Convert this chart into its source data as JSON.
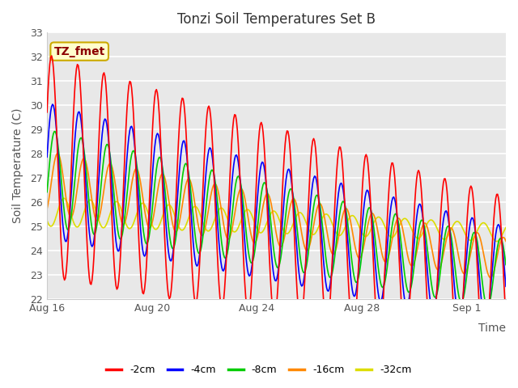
{
  "title": "Tonzi Soil Temperatures Set B",
  "ylabel": "Soil Temperature (C)",
  "ylim": [
    22.0,
    33.0
  ],
  "yticks": [
    22.0,
    23.0,
    24.0,
    25.0,
    26.0,
    27.0,
    28.0,
    29.0,
    30.0,
    31.0,
    32.0,
    33.0
  ],
  "plot_bg": "#e8e8e8",
  "series_colors": [
    "#ff0000",
    "#0000ff",
    "#00cc00",
    "#ff8800",
    "#dddd00"
  ],
  "series_labels": [
    "-2cm",
    "-4cm",
    "-8cm",
    "-16cm",
    "-32cm"
  ],
  "annotation_text": "TZ_fmet",
  "annotation_bg": "#ffffcc",
  "annotation_border": "#ccaa00",
  "x_tick_labels": [
    "Aug 16",
    "Aug 20",
    "Aug 24",
    "Aug 28",
    "Sep 1"
  ],
  "x_tick_positions": [
    0,
    4,
    8,
    12,
    16
  ],
  "xlim": [
    0,
    17.5
  ],
  "n_points": 500,
  "end_day": 17.5
}
